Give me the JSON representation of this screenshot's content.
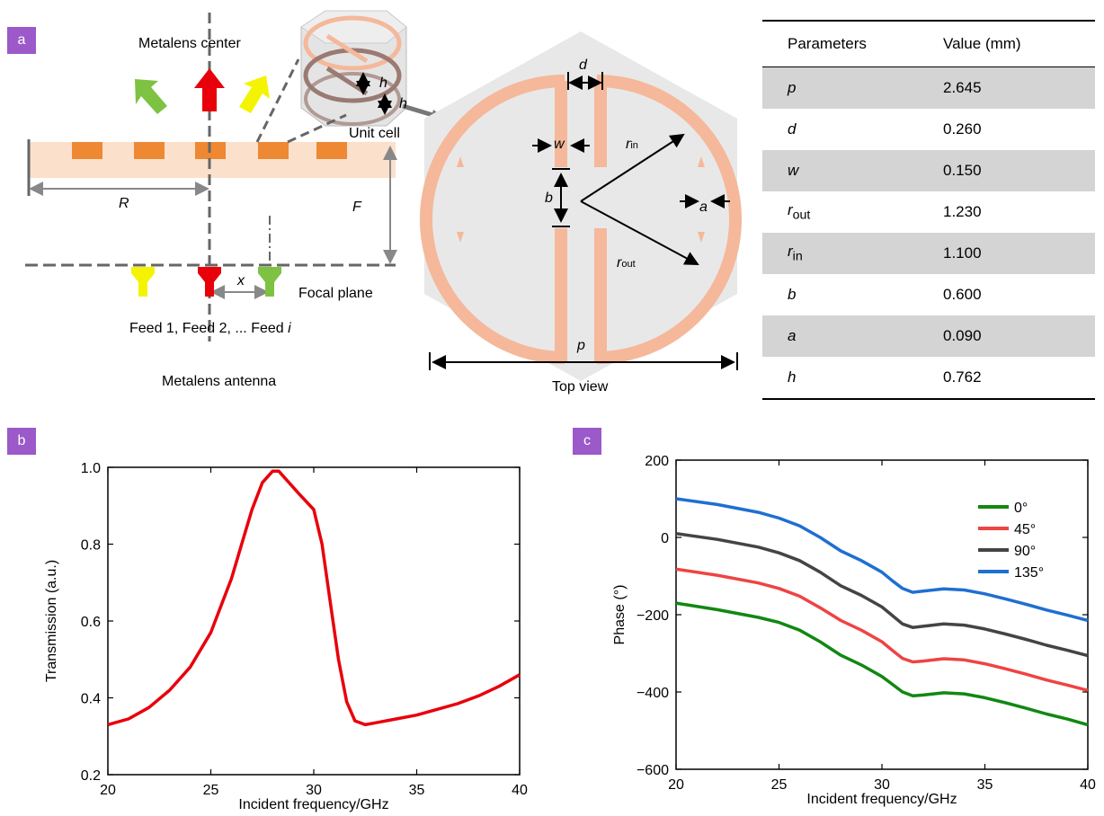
{
  "panels": {
    "a": "a",
    "b": "b",
    "c": "c"
  },
  "panel_a": {
    "metalens_center": "Metalens center",
    "unit_cell": "Unit cell",
    "focal_plane": "Focal plane",
    "feeds_prefix": "Feed 1, Feed 2, ... Feed ",
    "feeds_i": "i",
    "metalens_antenna": "Metalens antenna",
    "top_view": "Top view",
    "dim_R": "R",
    "dim_F": "F",
    "dim_x": "x",
    "dim_h": "h",
    "dim_d": "d",
    "dim_w": "w",
    "dim_b": "b",
    "dim_a": "a",
    "dim_p": "p",
    "dim_r": "r",
    "sub_in": "in",
    "sub_out": "out",
    "colors": {
      "lens": "#fbe0cc",
      "cell": "#ee8833",
      "ring": "#f5b89a",
      "hex": "#e8e8e8",
      "red": "#e8000b",
      "green": "#7dc242",
      "yellow": "#f4f400"
    }
  },
  "table": {
    "headers": [
      "Parameters",
      "Value (mm)"
    ],
    "rows": [
      {
        "name": "p",
        "sub": "",
        "value": "2.645"
      },
      {
        "name": "d",
        "sub": "",
        "value": "0.260"
      },
      {
        "name": "w",
        "sub": "",
        "value": "0.150"
      },
      {
        "name": "r",
        "sub": "out",
        "value": "1.230"
      },
      {
        "name": "r",
        "sub": "in",
        "value": "1.100"
      },
      {
        "name": "b",
        "sub": "",
        "value": "0.600"
      },
      {
        "name": "a",
        "sub": "",
        "value": "0.090"
      },
      {
        "name": "h",
        "sub": "",
        "value": "0.762"
      }
    ]
  },
  "chart_data": [
    {
      "type": "line",
      "xlabel": "Incident frequency/GHz",
      "ylabel": "Transmission (a.u.)",
      "xlim": [
        20,
        40
      ],
      "ylim": [
        0.2,
        1.0
      ],
      "xticks": [
        20,
        25,
        30,
        35,
        40
      ],
      "yticks": [
        0.2,
        0.4,
        0.6,
        0.8,
        1.0
      ],
      "ytick_labels": [
        "0.2",
        "0.4",
        "0.6",
        "0.8",
        "1.0"
      ],
      "grid": false,
      "series": [
        {
          "color": "#e8000b",
          "x": [
            20,
            21,
            22,
            23,
            24,
            25,
            26,
            26.5,
            27,
            27.5,
            28,
            28.3,
            28.8,
            29.3,
            30,
            30.4,
            30.8,
            31.2,
            31.6,
            32,
            32.5,
            33,
            34,
            35,
            36,
            37,
            38,
            39,
            40
          ],
          "y": [
            0.33,
            0.345,
            0.375,
            0.42,
            0.48,
            0.57,
            0.71,
            0.8,
            0.89,
            0.96,
            0.99,
            0.99,
            0.96,
            0.93,
            0.89,
            0.8,
            0.65,
            0.5,
            0.39,
            0.34,
            0.33,
            0.335,
            0.345,
            0.355,
            0.37,
            0.385,
            0.405,
            0.43,
            0.46
          ]
        }
      ]
    },
    {
      "type": "line",
      "xlabel": "Incident frequency/GHz",
      "ylabel": "Phase (°)",
      "xlim": [
        20,
        40
      ],
      "ylim": [
        -600,
        200
      ],
      "xticks": [
        20,
        25,
        30,
        35,
        40
      ],
      "yticks": [
        -600,
        -400,
        -200,
        0,
        200
      ],
      "ytick_labels": [
        "−600",
        "−400",
        "−200",
        "0",
        "200"
      ],
      "grid": false,
      "legend": "top-right",
      "series": [
        {
          "name": "0°",
          "color": "#118811",
          "x": [
            20,
            22,
            24,
            25,
            26,
            27,
            28,
            29,
            30,
            30.5,
            31,
            31.5,
            32,
            33,
            34,
            35,
            36,
            37,
            38,
            39,
            40
          ],
          "y": [
            -170,
            -187,
            -207,
            -220,
            -240,
            -270,
            -305,
            -330,
            -360,
            -380,
            -400,
            -410,
            -408,
            -402,
            -405,
            -415,
            -428,
            -442,
            -457,
            -470,
            -485
          ]
        },
        {
          "name": "45°",
          "color": "#ee4444",
          "x": [
            20,
            22,
            24,
            25,
            26,
            27,
            28,
            29,
            30,
            30.5,
            31,
            31.5,
            32,
            33,
            34,
            35,
            36,
            37,
            38,
            39,
            40
          ],
          "y": [
            -82,
            -98,
            -118,
            -132,
            -152,
            -182,
            -215,
            -240,
            -270,
            -292,
            -313,
            -322,
            -320,
            -314,
            -317,
            -327,
            -340,
            -354,
            -369,
            -382,
            -396
          ]
        },
        {
          "name": "90°",
          "color": "#444444",
          "x": [
            20,
            22,
            24,
            25,
            26,
            27,
            28,
            29,
            30,
            30.5,
            31,
            31.5,
            32,
            33,
            34,
            35,
            36,
            37,
            38,
            39,
            40
          ],
          "y": [
            10,
            -5,
            -25,
            -40,
            -60,
            -90,
            -125,
            -150,
            -180,
            -202,
            -224,
            -233,
            -230,
            -224,
            -227,
            -237,
            -250,
            -264,
            -279,
            -292,
            -306
          ]
        },
        {
          "name": "135°",
          "color": "#1f6fd1",
          "x": [
            20,
            22,
            24,
            25,
            26,
            27,
            28,
            29,
            30,
            30.5,
            31,
            31.5,
            32,
            33,
            34,
            35,
            36,
            37,
            38,
            39,
            40
          ],
          "y": [
            100,
            85,
            65,
            50,
            30,
            0,
            -35,
            -60,
            -90,
            -112,
            -132,
            -142,
            -139,
            -133,
            -136,
            -146,
            -159,
            -173,
            -188,
            -201,
            -215
          ]
        }
      ]
    }
  ]
}
